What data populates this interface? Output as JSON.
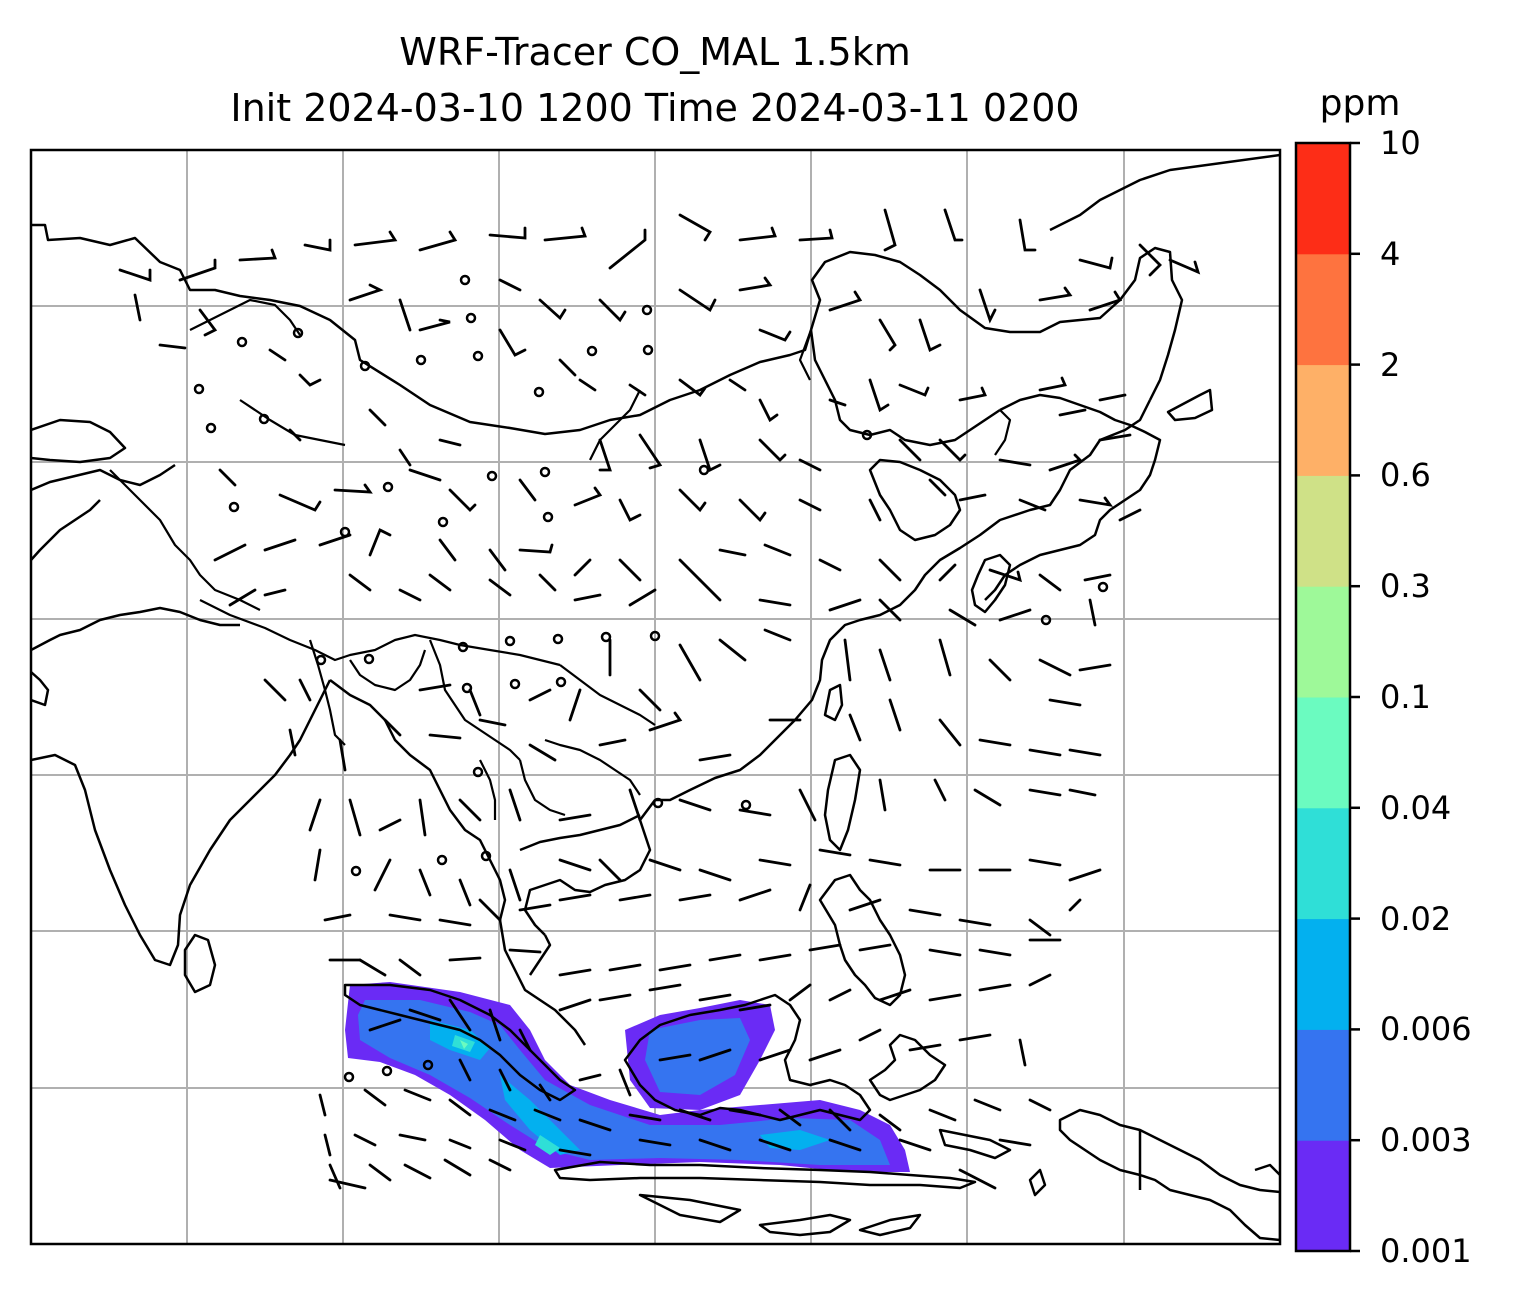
{
  "title": {
    "line1": "WRF-Tracer CO_MAL 1.5km",
    "line2": "Init 2024-03-10 1200 Time 2024-03-11 0200"
  },
  "map": {
    "field": "CO_MAL tracer concentration",
    "height": "1.5km",
    "region": "South & Southeast Asia, China, Mongolia, Korea, Japan, Philippines, Indonesia, New Guinea",
    "overlays": [
      "coastlines",
      "country borders",
      "wind barbs",
      "lat/lon gridlines"
    ],
    "plume_location": "Sumatra, Java Sea and southern Borneo",
    "background": "#ffffff",
    "gridline_color": "#b0b0b0"
  },
  "colorbar": {
    "unit": "ppm",
    "ticks": [
      "0.001",
      "0.003",
      "0.006",
      "0.02",
      "0.04",
      "0.1",
      "0.3",
      "0.6",
      "2",
      "4",
      "10"
    ],
    "colors": [
      "#6a2bf5",
      "#3574f0",
      "#03b0ef",
      "#2fdfd7",
      "#6bfbc0",
      "#9ef999",
      "#cfe187",
      "#feb067",
      "#fe733f",
      "#fd2d17"
    ]
  }
}
